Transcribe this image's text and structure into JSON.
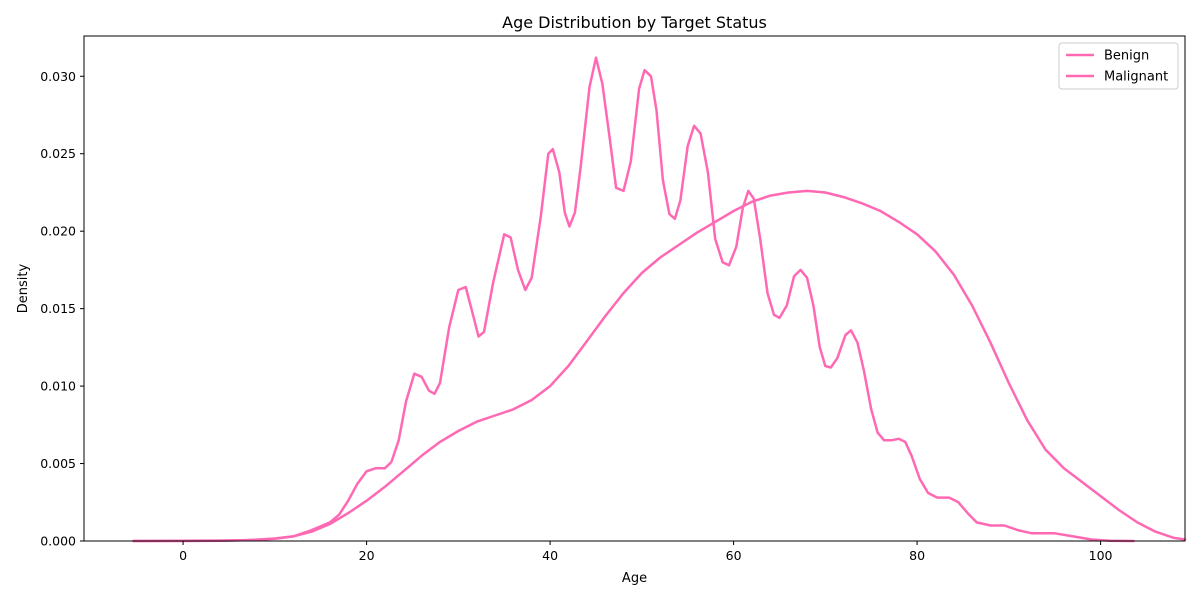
{
  "chart_data": {
    "type": "line",
    "title": "Age Distribution by Target Status",
    "xlabel": "Age",
    "ylabel": "Density",
    "xlim": [
      -10.8,
      109.2
    ],
    "ylim": [
      0,
      0.0326
    ],
    "x_ticks": [
      0,
      20,
      40,
      60,
      80,
      100
    ],
    "x_tick_labels": [
      "0",
      "20",
      "40",
      "60",
      "80",
      "100"
    ],
    "y_ticks": [
      0,
      0.005,
      0.01,
      0.015,
      0.02,
      0.025,
      0.03
    ],
    "y_tick_labels": [
      "0.000",
      "0.005",
      "0.010",
      "0.015",
      "0.020",
      "0.025",
      "0.030"
    ],
    "grid": false,
    "legend_position": "top-right",
    "series": [
      {
        "name": "Benign",
        "color": "#ff69b4",
        "points": [
          [
            -5.4,
            0
          ],
          [
            5,
            3e-05
          ],
          [
            8,
            8e-05
          ],
          [
            10,
            0.00016
          ],
          [
            12,
            0.0003
          ],
          [
            14,
            0.0007
          ],
          [
            16,
            0.0012
          ],
          [
            17,
            0.0017
          ],
          [
            18,
            0.0026
          ],
          [
            19,
            0.0037
          ],
          [
            20,
            0.0045
          ],
          [
            21,
            0.0047
          ],
          [
            22,
            0.0047
          ],
          [
            22.7,
            0.0051
          ],
          [
            23.5,
            0.0065
          ],
          [
            24.3,
            0.009
          ],
          [
            25.2,
            0.0108
          ],
          [
            26,
            0.0106
          ],
          [
            26.8,
            0.0097
          ],
          [
            27.4,
            0.0095
          ],
          [
            28,
            0.0102
          ],
          [
            29,
            0.0138
          ],
          [
            30,
            0.0162
          ],
          [
            30.8,
            0.0164
          ],
          [
            31.6,
            0.0146
          ],
          [
            32.2,
            0.0132
          ],
          [
            32.8,
            0.0135
          ],
          [
            33.8,
            0.0167
          ],
          [
            35,
            0.0198
          ],
          [
            35.7,
            0.0196
          ],
          [
            36.5,
            0.0175
          ],
          [
            37.3,
            0.0162
          ],
          [
            38,
            0.017
          ],
          [
            39,
            0.021
          ],
          [
            39.8,
            0.025
          ],
          [
            40.3,
            0.0253
          ],
          [
            41,
            0.0238
          ],
          [
            41.6,
            0.0212
          ],
          [
            42.1,
            0.0203
          ],
          [
            42.7,
            0.0212
          ],
          [
            43.3,
            0.024
          ],
          [
            44.3,
            0.0293
          ],
          [
            45,
            0.0312
          ],
          [
            45.7,
            0.0295
          ],
          [
            46.5,
            0.026
          ],
          [
            47.2,
            0.0228
          ],
          [
            48,
            0.0226
          ],
          [
            48.8,
            0.0245
          ],
          [
            49.7,
            0.0292
          ],
          [
            50.3,
            0.0304
          ],
          [
            51,
            0.03
          ],
          [
            51.6,
            0.0278
          ],
          [
            52.3,
            0.0233
          ],
          [
            53,
            0.0211
          ],
          [
            53.6,
            0.0208
          ],
          [
            54.2,
            0.022
          ],
          [
            55,
            0.0255
          ],
          [
            55.7,
            0.0268
          ],
          [
            56.4,
            0.0263
          ],
          [
            57.2,
            0.0238
          ],
          [
            58,
            0.0195
          ],
          [
            58.8,
            0.018
          ],
          [
            59.5,
            0.0178
          ],
          [
            60.3,
            0.019
          ],
          [
            61,
            0.0215
          ],
          [
            61.6,
            0.0226
          ],
          [
            62.2,
            0.0221
          ],
          [
            62.9,
            0.0195
          ],
          [
            63.7,
            0.016
          ],
          [
            64.4,
            0.0146
          ],
          [
            65,
            0.0144
          ],
          [
            65.8,
            0.0152
          ],
          [
            66.6,
            0.0171
          ],
          [
            67.3,
            0.0175
          ],
          [
            68,
            0.017
          ],
          [
            68.7,
            0.0152
          ],
          [
            69.4,
            0.0125
          ],
          [
            70,
            0.0113
          ],
          [
            70.6,
            0.0112
          ],
          [
            71.3,
            0.0118
          ],
          [
            72.2,
            0.0133
          ],
          [
            72.8,
            0.0136
          ],
          [
            73.5,
            0.0128
          ],
          [
            74.2,
            0.011
          ],
          [
            75,
            0.0085
          ],
          [
            75.7,
            0.007
          ],
          [
            76.4,
            0.0065
          ],
          [
            77.2,
            0.0065
          ],
          [
            78,
            0.0066
          ],
          [
            78.7,
            0.0064
          ],
          [
            79.4,
            0.0055
          ],
          [
            80.3,
            0.004
          ],
          [
            81.2,
            0.0031
          ],
          [
            82.2,
            0.0028
          ],
          [
            83.5,
            0.0028
          ],
          [
            84.5,
            0.0025
          ],
          [
            85.5,
            0.0018
          ],
          [
            86.5,
            0.0012
          ],
          [
            88,
            0.001
          ],
          [
            89.5,
            0.001
          ],
          [
            91,
            0.0007
          ],
          [
            92.5,
            0.0005
          ],
          [
            95,
            0.0005
          ],
          [
            97,
            0.0003
          ],
          [
            99,
            0.0001
          ],
          [
            101,
            2e-05
          ],
          [
            103.6,
            0
          ]
        ]
      },
      {
        "name": "Malignant",
        "color": "#ff69b4",
        "points": [
          [
            -5.4,
            0
          ],
          [
            0,
            0
          ],
          [
            4,
            2e-05
          ],
          [
            7,
            6e-05
          ],
          [
            10,
            0.00015
          ],
          [
            12,
            0.0003
          ],
          [
            14,
            0.0006
          ],
          [
            16,
            0.0011
          ],
          [
            18,
            0.0018
          ],
          [
            20,
            0.0026
          ],
          [
            22,
            0.0035
          ],
          [
            24,
            0.0045
          ],
          [
            26,
            0.0055
          ],
          [
            28,
            0.0064
          ],
          [
            30,
            0.0071
          ],
          [
            32,
            0.0077
          ],
          [
            34,
            0.0081
          ],
          [
            36,
            0.0085
          ],
          [
            38,
            0.0091
          ],
          [
            40,
            0.01
          ],
          [
            42,
            0.0113
          ],
          [
            44,
            0.0129
          ],
          [
            46,
            0.0145
          ],
          [
            48,
            0.016
          ],
          [
            50,
            0.0173
          ],
          [
            52,
            0.0183
          ],
          [
            54,
            0.0191
          ],
          [
            56,
            0.0199
          ],
          [
            58,
            0.0206
          ],
          [
            60,
            0.0213
          ],
          [
            62,
            0.0219
          ],
          [
            64,
            0.0223
          ],
          [
            66,
            0.0225
          ],
          [
            68,
            0.0226
          ],
          [
            70,
            0.0225
          ],
          [
            72,
            0.0222
          ],
          [
            74,
            0.0218
          ],
          [
            76,
            0.0213
          ],
          [
            78,
            0.0206
          ],
          [
            80,
            0.0198
          ],
          [
            82,
            0.0187
          ],
          [
            84,
            0.0172
          ],
          [
            86,
            0.0152
          ],
          [
            88,
            0.0128
          ],
          [
            90,
            0.0102
          ],
          [
            92,
            0.0078
          ],
          [
            94,
            0.0059
          ],
          [
            96,
            0.0047
          ],
          [
            98,
            0.0038
          ],
          [
            100,
            0.0029
          ],
          [
            102,
            0.002
          ],
          [
            104,
            0.0012
          ],
          [
            106,
            0.0006
          ],
          [
            108,
            0.0002
          ],
          [
            109.2,
            0.0001
          ]
        ]
      }
    ]
  }
}
